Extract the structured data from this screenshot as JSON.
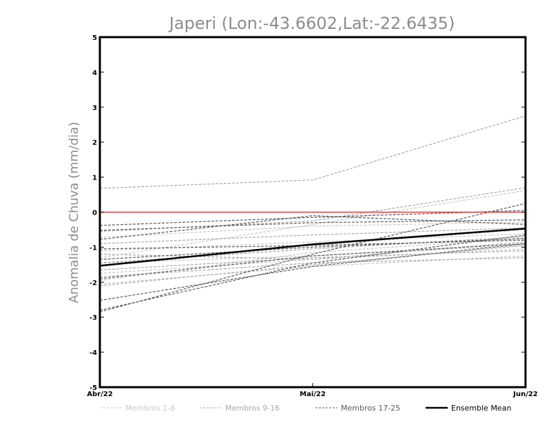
{
  "chart_data": {
    "type": "line",
    "title": "Japeri (Lon:-43.6602,Lat:-22.6435)",
    "ylabel": "Anomalia de Chuva (mm/dia)",
    "categories": [
      "Abr/22",
      "Mai/22",
      "Jun/22"
    ],
    "ylim": [
      -5,
      5
    ],
    "yticks": [
      "5",
      "4",
      "3",
      "2",
      "1",
      "0",
      "-1",
      "-2",
      "-3",
      "-4",
      "-5"
    ],
    "reference_line": {
      "y": 0,
      "color": "#e03a3a"
    },
    "series": [
      {
        "name": "Membros 1-8",
        "color": "#c8c8c8",
        "style": "dashed",
        "lines": [
          [
            -0.72,
            -0.4,
            -0.28
          ],
          [
            -1.1,
            -0.85,
            -0.62
          ],
          [
            -1.45,
            -1.25,
            -0.95
          ],
          [
            -1.75,
            -1.35,
            -1.05
          ],
          [
            -1.95,
            -1.15,
            -0.75
          ],
          [
            -1.3,
            -0.35,
            0.62
          ],
          [
            -2.05,
            -1.55,
            -1.25
          ],
          [
            -1.55,
            -0.95,
            -0.5
          ]
        ]
      },
      {
        "name": "Membros 9-16",
        "color": "#a8a8a8",
        "style": "dashed",
        "lines": [
          [
            0.68,
            0.92,
            2.75
          ],
          [
            -0.55,
            -0.25,
            0.7
          ],
          [
            -1.2,
            -1.35,
            -0.85
          ],
          [
            -1.85,
            -1.45,
            -1.3
          ],
          [
            -2.1,
            -1.5,
            -0.95
          ],
          [
            -1.45,
            -1.05,
            -0.7
          ],
          [
            -0.9,
            -0.65,
            -0.45
          ],
          [
            -1.65,
            -1.3,
            -1.1
          ]
        ]
      },
      {
        "name": "Membros 17-25",
        "color": "#5a5a5a",
        "style": "dashed",
        "lines": [
          [
            -0.38,
            -0.15,
            0.05
          ],
          [
            -0.52,
            -0.3,
            -0.22
          ],
          [
            -1.05,
            -0.95,
            -0.8
          ],
          [
            -2.85,
            -1.2,
            0.25
          ],
          [
            -2.52,
            -1.55,
            -0.9
          ],
          [
            -2.8,
            -1.45,
            -0.65
          ],
          [
            -0.78,
            -0.1,
            -0.35
          ],
          [
            -1.9,
            -1.25,
            -0.9
          ],
          [
            -1.35,
            -1.0,
            -0.75
          ]
        ]
      },
      {
        "name": "Ensemble Mean",
        "color": "#000000",
        "style": "solid",
        "values": [
          -1.53,
          -0.92,
          -0.47
        ]
      }
    ],
    "legend_position": "bottom"
  }
}
